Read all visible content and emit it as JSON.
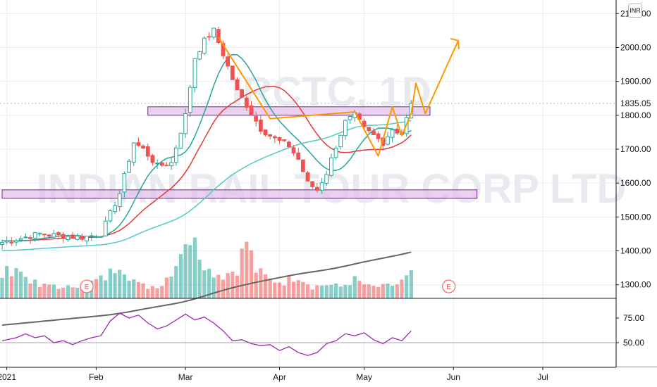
{
  "currency_label": "INR",
  "watermark": {
    "symbol": "IRCTC, 1D",
    "name": "INDIAN RAIL TOUR CORP LTD"
  },
  "chart_data": [
    {
      "type": "candlestick",
      "y_axis": {
        "ticks": [
          1300,
          1400,
          1500,
          1600,
          1700,
          1800,
          1900,
          2000,
          2100
        ],
        "tick_labels": [
          "1300.00",
          "1400.00",
          "1500.00",
          "1600.00",
          "1700.00",
          "1800.00",
          "1900.00",
          "2000.00",
          "2100.00"
        ],
        "ylim": [
          1260,
          2140
        ],
        "last_price_label": "1835.05",
        "last_price": 1835.05
      },
      "x_axis": {
        "tick_labels": [
          "2021",
          "Feb",
          "Mar",
          "Apr",
          "May",
          "Jun",
          "Jul"
        ],
        "tick_index": [
          1,
          20,
          39,
          59,
          77,
          96,
          115
        ]
      },
      "last_close": 1835.05,
      "close_points": [
        [
          0,
          1425
        ],
        [
          8,
          1450
        ],
        [
          12,
          1445
        ],
        [
          17,
          1440
        ],
        [
          21,
          1450
        ],
        [
          25,
          1570
        ],
        [
          28,
          1720
        ],
        [
          30,
          1700
        ],
        [
          33,
          1650
        ],
        [
          36,
          1660
        ],
        [
          39,
          1800
        ],
        [
          41,
          1970
        ],
        [
          43,
          2020
        ],
        [
          45,
          2050
        ],
        [
          47,
          1980
        ],
        [
          50,
          1870
        ],
        [
          52,
          1830
        ],
        [
          55,
          1760
        ],
        [
          58,
          1730
        ],
        [
          61,
          1710
        ],
        [
          63,
          1670
        ],
        [
          65,
          1600
        ],
        [
          67,
          1580
        ],
        [
          69,
          1630
        ],
        [
          71,
          1710
        ],
        [
          73,
          1780
        ],
        [
          75,
          1800
        ],
        [
          77,
          1760
        ],
        [
          79,
          1740
        ],
        [
          81,
          1720
        ],
        [
          83,
          1760
        ],
        [
          85,
          1745
        ],
        [
          87,
          1835
        ]
      ],
      "volume_points": [
        [
          0,
          1
        ],
        [
          3,
          1.4
        ],
        [
          4,
          1.1
        ],
        [
          6,
          0.8
        ],
        [
          8,
          0.5
        ],
        [
          11,
          0.6
        ],
        [
          13,
          0.4
        ],
        [
          16,
          0.6
        ],
        [
          19,
          0.7
        ],
        [
          22,
          0.9
        ],
        [
          24,
          1.3
        ],
        [
          25,
          1.6
        ],
        [
          27,
          1.0
        ],
        [
          29,
          0.6
        ],
        [
          31,
          0.5
        ],
        [
          34,
          0.6
        ],
        [
          37,
          1.5
        ],
        [
          38,
          2.2
        ],
        [
          39,
          2.6
        ],
        [
          40,
          2.0
        ],
        [
          41,
          3.2
        ],
        [
          42,
          2.0
        ],
        [
          44,
          1.2
        ],
        [
          47,
          1.0
        ],
        [
          50,
          1.3
        ],
        [
          52,
          2.5
        ],
        [
          54,
          1.2
        ],
        [
          57,
          0.8
        ],
        [
          60,
          0.7
        ],
        [
          63,
          1.0
        ],
        [
          66,
          0.5
        ],
        [
          69,
          0.6
        ],
        [
          72,
          0.5
        ],
        [
          75,
          0.8
        ],
        [
          78,
          0.5
        ],
        [
          81,
          0.5
        ],
        [
          84,
          0.6
        ],
        [
          87,
          1.0
        ]
      ],
      "moving_averages": [
        {
          "color": "#e53935",
          "period": 20
        },
        {
          "color": "#26a69a",
          "period": 10
        },
        {
          "color": "#4ecdc4",
          "period": 50
        },
        {
          "color": "#666666",
          "period": 200
        }
      ],
      "earnings_markers": [
        {
          "label": "E",
          "bar_index": 18
        },
        {
          "label": "E",
          "bar_index": 95
        }
      ],
      "support_zones": [
        {
          "low": 1800,
          "high": 1825,
          "start_index": 31,
          "end_index": 91
        },
        {
          "low": 1555,
          "high": 1580,
          "start_index": 0,
          "end_index": 101
        }
      ],
      "projection_path": [
        [
          46,
          2030
        ],
        [
          57,
          1790
        ],
        [
          75,
          1810
        ],
        [
          80,
          1680
        ],
        [
          83,
          1825
        ],
        [
          85,
          1740
        ],
        [
          87,
          1805
        ],
        [
          88,
          1895
        ],
        [
          90,
          1805
        ],
        [
          97,
          2020
        ]
      ],
      "colors": {
        "up": "#26a69a",
        "down": "#ef5350",
        "zone_fill": "#e1bee7",
        "zone_stroke": "#7b1fa2",
        "projection": "#ff9800",
        "grid": "#e9ecf2"
      }
    },
    {
      "type": "line",
      "indicator": "oscillator",
      "y_axis": {
        "ticks": [
          50,
          75
        ],
        "tick_labels": [
          "50.00",
          "75.00"
        ],
        "ylim": [
          25,
          95
        ]
      },
      "reference_level": 50,
      "color": "#9c27b0",
      "points": [
        [
          0,
          52
        ],
        [
          3,
          55
        ],
        [
          5,
          59
        ],
        [
          7,
          55
        ],
        [
          9,
          57
        ],
        [
          11,
          50
        ],
        [
          13,
          52
        ],
        [
          15,
          48
        ],
        [
          17,
          52
        ],
        [
          19,
          55
        ],
        [
          21,
          57
        ],
        [
          23,
          72
        ],
        [
          25,
          80
        ],
        [
          27,
          75
        ],
        [
          29,
          78
        ],
        [
          31,
          70
        ],
        [
          33,
          64
        ],
        [
          35,
          67
        ],
        [
          37,
          73
        ],
        [
          39,
          79
        ],
        [
          41,
          73
        ],
        [
          43,
          76
        ],
        [
          45,
          70
        ],
        [
          47,
          62
        ],
        [
          49,
          52
        ],
        [
          51,
          53
        ],
        [
          53,
          49
        ],
        [
          55,
          47
        ],
        [
          57,
          48
        ],
        [
          59,
          42
        ],
        [
          61,
          46
        ],
        [
          63,
          40
        ],
        [
          65,
          37
        ],
        [
          67,
          40
        ],
        [
          69,
          49
        ],
        [
          71,
          52
        ],
        [
          73,
          59
        ],
        [
          75,
          57
        ],
        [
          77,
          60
        ],
        [
          79,
          53
        ],
        [
          81,
          49
        ],
        [
          83,
          55
        ],
        [
          85,
          52
        ],
        [
          87,
          62
        ]
      ]
    }
  ]
}
